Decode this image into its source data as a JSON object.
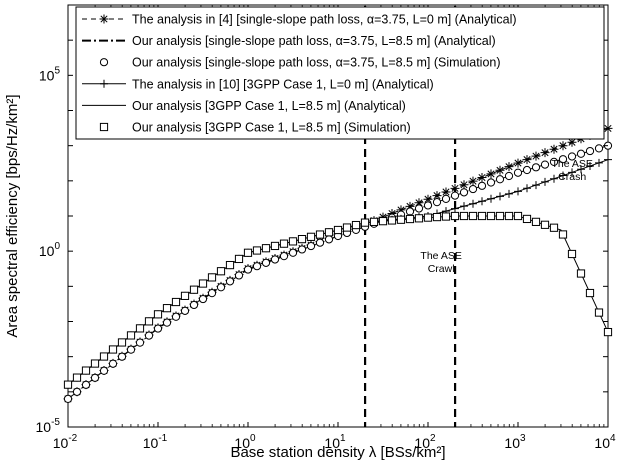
{
  "chart_data": {
    "type": "line",
    "xscale": "log",
    "yscale": "log",
    "xlim": [
      0.01,
      10000
    ],
    "ylim": [
      1e-05,
      10000000
    ],
    "xlabel": "Base station density λ [BSs/km²]",
    "ylabel": "Area spectral efficiency [bps/Hz/km²]",
    "x_ticks": [
      "10-2",
      "10-1",
      "100",
      "101",
      "102",
      "103",
      "104"
    ],
    "y_ticks": [
      "10-5",
      "100",
      "105"
    ],
    "legend_position": "top",
    "grid": false,
    "vertical_lines": [
      20,
      200
    ],
    "annotations": [
      {
        "text": "The ASE Crawl",
        "x": 140,
        "y": 0.6
      },
      {
        "text": "The ASE Crash",
        "x": 4000,
        "y": 250
      }
    ],
    "series": [
      {
        "name": "The analysis in [4] [single-slope path loss, α=3.75, L=0 m] (Analytical)",
        "marker": "asterisk",
        "line": "dashed",
        "x": [
          0.01,
          0.1,
          1,
          10,
          100,
          1000,
          10000
        ],
        "y": [
          6.3e-05,
          0.0066,
          0.32,
          2.9,
          30,
          320,
          3100
        ]
      },
      {
        "name": "Our analysis [single-slope path loss, α=3.75, L=8.5 m] (Analytical)",
        "marker": "none",
        "line": "dashdot",
        "x": [
          0.01,
          0.1,
          1,
          10,
          100,
          1000,
          10000
        ],
        "y": [
          6.3e-05,
          0.0063,
          0.3,
          2.7,
          20,
          170,
          1000
        ]
      },
      {
        "name": "Our analysis [single-slope path loss, α=3.75, L=8.5 m] (Simulation)",
        "marker": "circle",
        "line": "none",
        "x": [
          0.01,
          0.1,
          1,
          10,
          100,
          1000,
          10000
        ],
        "y": [
          6.3e-05,
          0.0063,
          0.3,
          2.7,
          20,
          170,
          1000
        ]
      },
      {
        "name": "The analysis in [10] [3GPP Case 1, L=0 m] (Analytical)",
        "marker": "plus",
        "line": "solid",
        "x": [
          0.01,
          0.1,
          1,
          10,
          20,
          100,
          1000,
          10000
        ],
        "y": [
          0.00016,
          0.016,
          0.9,
          4,
          6.5,
          10,
          50,
          400
        ]
      },
      {
        "name": "Our analysis [3GPP Case 1, L=8.5 m] (Analytical)",
        "marker": "none",
        "line": "solid",
        "x": [
          0.01,
          0.1,
          1,
          10,
          20,
          100,
          200,
          1000,
          3000,
          10000
        ],
        "y": [
          0.00016,
          0.016,
          0.9,
          4,
          6.5,
          9,
          10,
          10,
          4,
          0.005
        ]
      },
      {
        "name": "Our analysis [3GPP Case 1, L=8.5 m] (Simulation)",
        "marker": "square",
        "line": "none",
        "x": [
          0.01,
          0.1,
          1,
          10,
          20,
          100,
          200,
          1000,
          3000,
          10000
        ],
        "y": [
          0.00016,
          0.016,
          0.9,
          4,
          6.5,
          9,
          10,
          10,
          4,
          0.005
        ]
      }
    ]
  }
}
